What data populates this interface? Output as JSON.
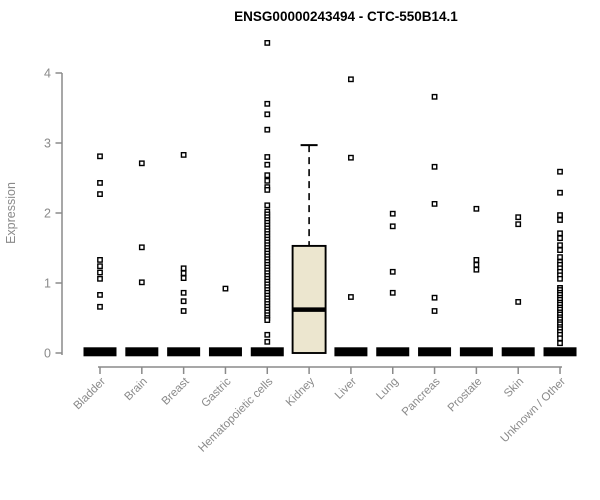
{
  "chart_data": {
    "type": "boxplot",
    "title": "ENSG00000243494 - CTC-550B14.1",
    "ylabel": "Expression",
    "xlabel": "",
    "ylim": [
      0,
      4.6
    ],
    "yticks": [
      0,
      1,
      2,
      3,
      4
    ],
    "grid": false,
    "legend": "none",
    "categories": [
      "Bladder",
      "Brain",
      "Breast",
      "Gastric",
      "Hematopoietic cells",
      "Kidney",
      "Liver",
      "Lung",
      "Pancreas",
      "Prostate",
      "Skin",
      "Unknown / Other"
    ],
    "colors": {
      "box_fill": "#ece6cf",
      "box_border": "#000000",
      "median": "#000000",
      "axis": "#8a8a8a",
      "tick_label": "#8a8a8a",
      "title": "#000000",
      "point_stroke": "#000000",
      "point_fill": "#ffffff",
      "background": "#ffffff"
    },
    "boxes": [
      {
        "category": "Bladder",
        "whisker_low": 0,
        "q1": 0,
        "median": 0.02,
        "q3": 0.05,
        "whisker_high": 0.05,
        "outliers": [
          2.81,
          2.43,
          2.27,
          1.33,
          1.24,
          1.15,
          1.06,
          0.83,
          0.66
        ]
      },
      {
        "category": "Brain",
        "whisker_low": 0,
        "q1": 0,
        "median": 0.02,
        "q3": 0.05,
        "whisker_high": 0.05,
        "outliers": [
          2.71,
          1.51,
          1.01
        ]
      },
      {
        "category": "Breast",
        "whisker_low": 0,
        "q1": 0,
        "median": 0.02,
        "q3": 0.05,
        "whisker_high": 0.05,
        "outliers": [
          2.83,
          1.21,
          1.14,
          1.07,
          0.86,
          0.74,
          0.6
        ]
      },
      {
        "category": "Gastric",
        "whisker_low": 0,
        "q1": 0,
        "median": 0.02,
        "q3": 0.05,
        "whisker_high": 0.05,
        "outliers": [
          0.92
        ]
      },
      {
        "category": "Hematopoietic cells",
        "whisker_low": 0,
        "q1": 0,
        "median": 0.02,
        "q3": 0.05,
        "whisker_high": 0.05,
        "outliers": [
          4.43,
          3.56,
          3.41,
          3.19,
          2.8,
          2.69,
          2.54,
          2.46,
          2.37,
          2.33,
          2.11,
          2.02,
          1.98,
          1.94,
          1.9,
          1.86,
          1.82,
          1.78,
          1.74,
          1.7,
          1.66,
          1.62,
          1.58,
          1.54,
          1.5,
          1.46,
          1.42,
          1.38,
          1.34,
          1.3,
          1.26,
          1.22,
          1.18,
          1.14,
          1.1,
          1.06,
          1.02,
          0.98,
          0.94,
          0.9,
          0.86,
          0.82,
          0.78,
          0.74,
          0.7,
          0.66,
          0.62,
          0.58,
          0.54,
          0.5,
          0.47,
          0.26,
          0.16
        ]
      },
      {
        "category": "Kidney",
        "whisker_low": 0,
        "q1": 0,
        "median": 0.62,
        "q3": 1.53,
        "whisker_high": 2.97,
        "outliers": []
      },
      {
        "category": "Liver",
        "whisker_low": 0,
        "q1": 0,
        "median": 0.02,
        "q3": 0.05,
        "whisker_high": 0.05,
        "outliers": [
          3.91,
          2.79,
          0.8
        ]
      },
      {
        "category": "Lung",
        "whisker_low": 0,
        "q1": 0,
        "median": 0.02,
        "q3": 0.05,
        "whisker_high": 0.05,
        "outliers": [
          1.99,
          1.81,
          1.16,
          0.86
        ]
      },
      {
        "category": "Pancreas",
        "whisker_low": 0,
        "q1": 0,
        "median": 0.02,
        "q3": 0.05,
        "whisker_high": 0.05,
        "outliers": [
          3.66,
          2.66,
          2.13,
          0.79,
          0.6
        ]
      },
      {
        "category": "Prostate",
        "whisker_low": 0,
        "q1": 0,
        "median": 0.02,
        "q3": 0.05,
        "whisker_high": 0.05,
        "outliers": [
          2.06,
          1.33,
          1.26,
          1.19
        ]
      },
      {
        "category": "Skin",
        "whisker_low": 0,
        "q1": 0,
        "median": 0.02,
        "q3": 0.05,
        "whisker_high": 0.05,
        "outliers": [
          1.94,
          1.84,
          0.73
        ]
      },
      {
        "category": "Unknown / Other",
        "whisker_low": 0,
        "q1": 0,
        "median": 0.02,
        "q3": 0.05,
        "whisker_high": 0.05,
        "outliers": [
          2.59,
          2.29,
          1.97,
          1.9,
          1.71,
          1.64,
          1.54,
          1.47,
          1.37,
          1.3,
          1.26,
          1.21,
          1.16,
          1.11,
          1.06,
          0.93,
          0.9,
          0.86,
          0.83,
          0.79,
          0.76,
          0.72,
          0.69,
          0.65,
          0.62,
          0.58,
          0.55,
          0.51,
          0.48,
          0.44,
          0.41,
          0.37,
          0.34,
          0.3,
          0.26,
          0.21,
          0.14
        ]
      }
    ]
  }
}
